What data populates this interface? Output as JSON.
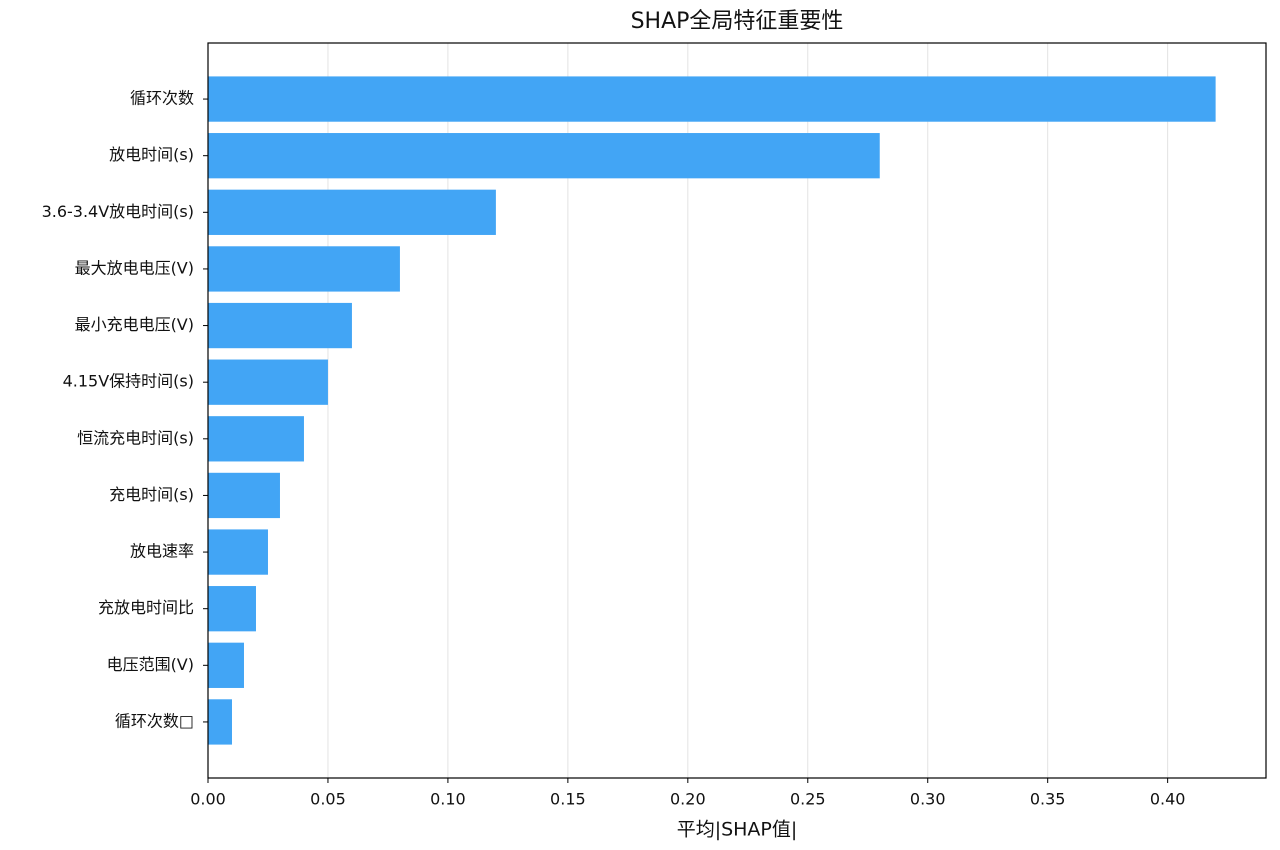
{
  "chart_data": {
    "type": "barh",
    "title": "SHAP全局特征重要性",
    "x_label": "平均|SHAP值|",
    "categories": [
      "循环次数",
      "放电时间(s)",
      "3.6-3.4V放电时间(s)",
      "最大放电电压(V)",
      "最小充电电压(V)",
      "4.15V保持时间(s)",
      "恒流充电时间(s)",
      "充电时间(s)",
      "放电速率",
      "充放电时间比",
      "电压范围(V)",
      "循环次数□"
    ],
    "values": [
      0.42,
      0.28,
      0.12,
      0.08,
      0.06,
      0.05,
      0.04,
      0.03,
      0.025,
      0.02,
      0.015,
      0.01
    ],
    "color": "#42a5f5",
    "xlim": [
      0,
      0.441
    ],
    "xticks": [
      {
        "value": 0,
        "label": "0.00"
      },
      0.05,
      {
        "value": 0.1,
        "label": "0.10"
      },
      0.15,
      {
        "value": 0.2,
        "label": "0.20"
      },
      0.25,
      {
        "value": 0.3,
        "label": "0.30"
      },
      0.35,
      {
        "value": 0.4,
        "label": "0.40"
      }
    ],
    "grid": true
  }
}
